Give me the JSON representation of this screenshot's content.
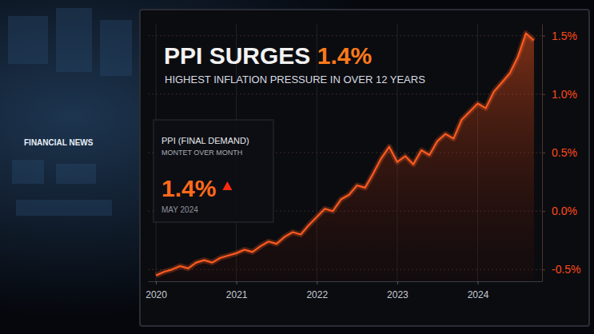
{
  "chart_data": {
    "type": "line",
    "title": "PPI SURGES 1.4%",
    "subtitle": "HIGHEST INFLATION PRESSURE IN OVER 12 YEARS",
    "box_title": "PPI (FINAL DEMAND)",
    "box_subtitle": "MONTET OVER MONTH",
    "box_value": "1.4%",
    "box_date": "MAY 2024",
    "background_text": "FINANCIAL NEWS",
    "color": "#ff5a1f",
    "grid": true,
    "x": [
      2020.0,
      2020.1,
      2020.2,
      2020.3,
      2020.4,
      2020.5,
      2020.6,
      2020.7,
      2020.8,
      2020.9,
      2021.0,
      2021.1,
      2021.2,
      2021.3,
      2021.4,
      2021.5,
      2021.6,
      2021.7,
      2021.8,
      2021.9,
      2022.0,
      2022.1,
      2022.2,
      2022.3,
      2022.4,
      2022.5,
      2022.6,
      2022.7,
      2022.8,
      2022.9,
      2023.0,
      2023.1,
      2023.2,
      2023.3,
      2023.4,
      2023.5,
      2023.6,
      2023.7,
      2023.8,
      2023.9,
      2024.0,
      2024.1,
      2024.2,
      2024.3,
      2024.4,
      2024.5,
      2024.6,
      2024.7
    ],
    "values": [
      -0.55,
      -0.52,
      -0.5,
      -0.47,
      -0.49,
      -0.44,
      -0.42,
      -0.44,
      -0.4,
      -0.38,
      -0.36,
      -0.33,
      -0.35,
      -0.3,
      -0.26,
      -0.28,
      -0.22,
      -0.18,
      -0.2,
      -0.12,
      -0.05,
      0.02,
      0.0,
      0.1,
      0.14,
      0.22,
      0.2,
      0.32,
      0.45,
      0.55,
      0.42,
      0.47,
      0.4,
      0.52,
      0.48,
      0.6,
      0.66,
      0.62,
      0.78,
      0.85,
      0.92,
      0.88,
      1.02,
      1.1,
      1.18,
      1.32,
      1.52,
      1.46
    ],
    "xlim": [
      2019.9,
      2024.8
    ],
    "xticks": [
      2020,
      2021,
      2022,
      2023,
      2024
    ],
    "ylim": [
      -0.6,
      1.6
    ],
    "yticks": [
      {
        "value": 1.5,
        "label": "1.5%"
      },
      {
        "value": 1.0,
        "label": "1.0%"
      },
      {
        "value": 0.5,
        "label": "0.5%"
      },
      {
        "value": 0.0,
        "label": "0.0%"
      },
      {
        "value": -0.5,
        "label": "-0.5%"
      }
    ]
  }
}
